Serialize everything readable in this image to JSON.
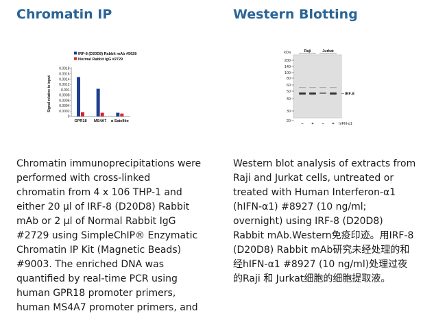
{
  "chip": {
    "title": "Chromatin IP",
    "description_lines": [
      "Chromatin immunoprecipitations were",
      "performed with cross-linked",
      "chromatin from 4 x 106 THP-1 and",
      "either 20 μl of IRF-8 (D20D8) Rabbit",
      "mAb or 2 μl of Normal Rabbit IgG",
      "#2729 using SimpleChIP® Enzymatic",
      "Chromatin IP Kit (Magnetic Beads)",
      "#9003. The enriched DNA was",
      "quantified by real-time PCR using",
      "human GPR18 promoter primers,",
      "human MS4A7 promoter primers, and"
    ]
  },
  "western": {
    "title": "Western Blotting",
    "description_lines": [
      "Western blot analysis of extracts from",
      "Raji and Jurkat cells, untreated or",
      "treated with Human Interferon-α1",
      "(hIFN-α1) #8927 (10 ng/ml;",
      "overnight) using IRF-8 (D20D8)",
      "Rabbit mAb.Western免疫印迹。用IRF-8",
      "(D20D8) Rabbit mAb研究未经处理的和",
      "经hIFN-α1 #8927 (10 ng/ml)处理过夜",
      "的Raji 和 Jurkat细胞的细胞提取液。"
    ],
    "blot": {
      "mw_markers": [
        "kDa",
        "200",
        "140",
        "100",
        "80",
        "60",
        "50",
        "40",
        "30",
        "20"
      ],
      "cell_lines": [
        "Raji",
        "Jurkat"
      ],
      "band_label": "IRF-8",
      "treatment_signs": [
        "–",
        "+",
        "–",
        "+"
      ],
      "treatment_label": "hIFN-α1"
    }
  },
  "chart_data": {
    "type": "bar",
    "title": "",
    "ylabel": "Signal relative to input",
    "xlabel": "",
    "ylim": [
      0,
      0.0018
    ],
    "yticks": [
      "0",
      "0.0002",
      "0.0004",
      "0.0006",
      "0.0008",
      "0.001",
      "0.0012",
      "0.0014",
      "0.0016",
      "0.0018"
    ],
    "categories": [
      "GPR18",
      "MS4A7",
      "α Satellite"
    ],
    "series": [
      {
        "name": "IRF-8 (D20D8) Rabbit mAb #5628",
        "color": "#1f3f8f",
        "values": [
          0.00148,
          0.00104,
          0.00014
        ]
      },
      {
        "name": "Normal Rabbit IgG #2729",
        "color": "#d8262f",
        "values": [
          0.00016,
          0.00014,
          0.00011
        ]
      }
    ],
    "legend": "top"
  }
}
